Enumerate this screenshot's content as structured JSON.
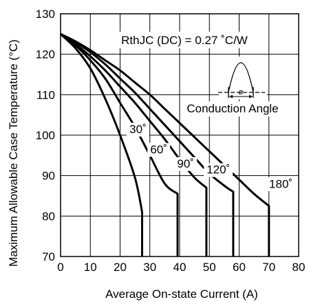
{
  "chart_data": {
    "type": "line",
    "xlabel": "Average On-state Current (A)",
    "ylabel": "Maximum Allowable Case Temperature (°C)",
    "xlim": [
      0,
      80
    ],
    "ylim": [
      70,
      130
    ],
    "x_ticks": [
      "0",
      "10",
      "20",
      "30",
      "40",
      "50",
      "60",
      "70",
      "80"
    ],
    "y_ticks": [
      "70",
      "80",
      "90",
      "100",
      "110",
      "120",
      "130"
    ],
    "grid": true,
    "annotation_rth": "RthJC (DC) = 0.27 ˚C/W",
    "annotation_conduction": "Conduction Angle",
    "annotation_phi": "ø",
    "series": [
      {
        "name": "30˚",
        "label_at": [
          26,
          100.5
        ],
        "points": [
          [
            0,
            125
          ],
          [
            5,
            121.5
          ],
          [
            10,
            116.5
          ],
          [
            15,
            109
          ],
          [
            20,
            100
          ],
          [
            25,
            89.5
          ],
          [
            27.4,
            81
          ],
          [
            27.4,
            70
          ]
        ]
      },
      {
        "name": "60˚",
        "label_at": [
          33,
          95.5
        ],
        "points": [
          [
            0,
            125
          ],
          [
            5,
            122.2
          ],
          [
            10,
            118.5
          ],
          [
            15,
            114
          ],
          [
            20,
            108
          ],
          [
            25,
            102
          ],
          [
            30,
            95
          ],
          [
            35,
            88
          ],
          [
            39.3,
            85.5
          ],
          [
            39.3,
            70
          ]
        ]
      },
      {
        "name": "90˚",
        "label_at": [
          42,
          92
        ],
        "points": [
          [
            0,
            125
          ],
          [
            5,
            122.5
          ],
          [
            10,
            119.5
          ],
          [
            15,
            116
          ],
          [
            20,
            112
          ],
          [
            25,
            108
          ],
          [
            30,
            103.5
          ],
          [
            35,
            99
          ],
          [
            40,
            94
          ],
          [
            45,
            89.5
          ],
          [
            49,
            87
          ],
          [
            49,
            70
          ]
        ]
      },
      {
        "name": "120˚",
        "label_at": [
          53,
          90.5
        ],
        "points": [
          [
            0,
            125
          ],
          [
            5,
            123
          ],
          [
            10,
            120.5
          ],
          [
            15,
            117.5
          ],
          [
            20,
            114
          ],
          [
            25,
            110.5
          ],
          [
            30,
            106.5
          ],
          [
            35,
            102.5
          ],
          [
            40,
            98.5
          ],
          [
            45,
            94.5
          ],
          [
            50,
            90.5
          ],
          [
            55,
            87.5
          ],
          [
            58,
            86
          ],
          [
            58,
            70
          ]
        ]
      },
      {
        "name": "180˚",
        "label_at": [
          74,
          87
        ],
        "points": [
          [
            0,
            125
          ],
          [
            5,
            123.2
          ],
          [
            10,
            121
          ],
          [
            15,
            118.5
          ],
          [
            20,
            116
          ],
          [
            25,
            113
          ],
          [
            30,
            110
          ],
          [
            35,
            106.5
          ],
          [
            40,
            103
          ],
          [
            45,
            99.5
          ],
          [
            50,
            96
          ],
          [
            55,
            92.5
          ],
          [
            60,
            89
          ],
          [
            65,
            85.5
          ],
          [
            70,
            82.5
          ],
          [
            70,
            70
          ]
        ]
      }
    ]
  }
}
